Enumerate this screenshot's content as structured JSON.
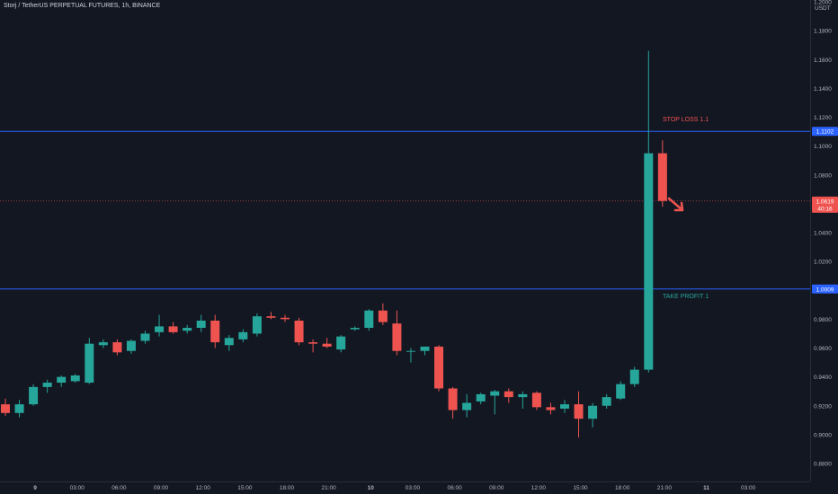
{
  "title": "Storj / TetherUS PERPETUAL FUTURES, 1h, BINANCE",
  "colors": {
    "background": "#131722",
    "up": "#26a69a",
    "down": "#ef5350",
    "hline": "#2962ff",
    "axis_text": "#b2b5be",
    "stop_loss_text": "#ef5350",
    "take_profit_text": "#26a69a",
    "arrow": "#ef5350"
  },
  "chart_data": {
    "type": "candlestick",
    "title": "Storj / TetherUS PERPETUAL FUTURES, 1h, BINANCE",
    "y_axis_label": "USDT",
    "ylim": [
      0.868,
      1.2
    ],
    "y_ticks": [
      "1.2000",
      "1.1800",
      "1.1600",
      "1.1400",
      "1.1200",
      "1.1000",
      "1.0800",
      "1.0600",
      "1.0400",
      "1.0200",
      "0.9800",
      "0.9600",
      "0.9400",
      "0.9200",
      "0.9000",
      "0.8800"
    ],
    "x_ticks": [
      {
        "label": "9",
        "bold": true,
        "i": 2
      },
      {
        "label": "03:00",
        "i": 5
      },
      {
        "label": "06:00",
        "i": 8
      },
      {
        "label": "09:00",
        "i": 11
      },
      {
        "label": "12:00",
        "i": 14
      },
      {
        "label": "15:00",
        "i": 17
      },
      {
        "label": "18:00",
        "i": 20
      },
      {
        "label": "21:00",
        "i": 23
      },
      {
        "label": "10",
        "bold": true,
        "i": 26
      },
      {
        "label": "03:00",
        "i": 29
      },
      {
        "label": "06:00",
        "i": 32
      },
      {
        "label": "09:00",
        "i": 35
      },
      {
        "label": "12:00",
        "i": 38
      },
      {
        "label": "15:00",
        "i": 41
      },
      {
        "label": "18:00",
        "i": 44
      },
      {
        "label": "21:00",
        "i": 47
      },
      {
        "label": "11",
        "bold": true,
        "i": 50
      },
      {
        "label": "03:00",
        "i": 53
      }
    ],
    "candles": [
      {
        "o": 0.921,
        "h": 0.925,
        "l": 0.913,
        "c": 0.915
      },
      {
        "o": 0.915,
        "h": 0.924,
        "l": 0.912,
        "c": 0.921
      },
      {
        "o": 0.921,
        "h": 0.935,
        "l": 0.92,
        "c": 0.933
      },
      {
        "o": 0.933,
        "h": 0.938,
        "l": 0.929,
        "c": 0.936
      },
      {
        "o": 0.936,
        "h": 0.941,
        "l": 0.933,
        "c": 0.94
      },
      {
        "o": 0.937,
        "h": 0.942,
        "l": 0.936,
        "c": 0.941
      },
      {
        "o": 0.936,
        "h": 0.967,
        "l": 0.935,
        "c": 0.963
      },
      {
        "o": 0.962,
        "h": 0.966,
        "l": 0.96,
        "c": 0.964
      },
      {
        "o": 0.964,
        "h": 0.966,
        "l": 0.955,
        "c": 0.957
      },
      {
        "o": 0.958,
        "h": 0.966,
        "l": 0.956,
        "c": 0.965
      },
      {
        "o": 0.965,
        "h": 0.972,
        "l": 0.963,
        "c": 0.97
      },
      {
        "o": 0.971,
        "h": 0.983,
        "l": 0.968,
        "c": 0.975
      },
      {
        "o": 0.975,
        "h": 0.978,
        "l": 0.97,
        "c": 0.971
      },
      {
        "o": 0.972,
        "h": 0.976,
        "l": 0.97,
        "c": 0.974
      },
      {
        "o": 0.974,
        "h": 0.983,
        "l": 0.971,
        "c": 0.979
      },
      {
        "o": 0.979,
        "h": 0.983,
        "l": 0.96,
        "c": 0.964
      },
      {
        "o": 0.962,
        "h": 0.969,
        "l": 0.958,
        "c": 0.967
      },
      {
        "o": 0.966,
        "h": 0.973,
        "l": 0.964,
        "c": 0.971
      },
      {
        "o": 0.97,
        "h": 0.984,
        "l": 0.968,
        "c": 0.982
      },
      {
        "o": 0.982,
        "h": 0.985,
        "l": 0.98,
        "c": 0.981
      },
      {
        "o": 0.981,
        "h": 0.983,
        "l": 0.978,
        "c": 0.98
      },
      {
        "o": 0.979,
        "h": 0.981,
        "l": 0.962,
        "c": 0.964
      },
      {
        "o": 0.964,
        "h": 0.966,
        "l": 0.957,
        "c": 0.963
      },
      {
        "o": 0.963,
        "h": 0.967,
        "l": 0.96,
        "c": 0.961
      },
      {
        "o": 0.959,
        "h": 0.969,
        "l": 0.957,
        "c": 0.968
      },
      {
        "o": 0.973,
        "h": 0.975,
        "l": 0.972,
        "c": 0.974
      },
      {
        "o": 0.974,
        "h": 0.987,
        "l": 0.972,
        "c": 0.986
      },
      {
        "o": 0.986,
        "h": 0.991,
        "l": 0.976,
        "c": 0.978
      },
      {
        "o": 0.977,
        "h": 0.986,
        "l": 0.955,
        "c": 0.958
      },
      {
        "o": 0.958,
        "h": 0.96,
        "l": 0.95,
        "c": 0.958
      },
      {
        "o": 0.958,
        "h": 0.961,
        "l": 0.955,
        "c": 0.961
      },
      {
        "o": 0.961,
        "h": 0.962,
        "l": 0.93,
        "c": 0.932
      },
      {
        "o": 0.932,
        "h": 0.933,
        "l": 0.911,
        "c": 0.917
      },
      {
        "o": 0.917,
        "h": 0.928,
        "l": 0.912,
        "c": 0.922
      },
      {
        "o": 0.923,
        "h": 0.929,
        "l": 0.921,
        "c": 0.928
      },
      {
        "o": 0.927,
        "h": 0.931,
        "l": 0.914,
        "c": 0.93
      },
      {
        "o": 0.93,
        "h": 0.932,
        "l": 0.922,
        "c": 0.926
      },
      {
        "o": 0.926,
        "h": 0.93,
        "l": 0.918,
        "c": 0.928
      },
      {
        "o": 0.929,
        "h": 0.93,
        "l": 0.917,
        "c": 0.919
      },
      {
        "o": 0.919,
        "h": 0.922,
        "l": 0.914,
        "c": 0.917
      },
      {
        "o": 0.918,
        "h": 0.924,
        "l": 0.915,
        "c": 0.921
      },
      {
        "o": 0.921,
        "h": 0.93,
        "l": 0.898,
        "c": 0.911
      },
      {
        "o": 0.911,
        "h": 0.922,
        "l": 0.905,
        "c": 0.92
      },
      {
        "o": 0.92,
        "h": 0.928,
        "l": 0.918,
        "c": 0.926
      },
      {
        "o": 0.925,
        "h": 0.937,
        "l": 0.924,
        "c": 0.935
      },
      {
        "o": 0.935,
        "h": 0.947,
        "l": 0.933,
        "c": 0.945
      },
      {
        "o": 0.945,
        "h": 1.166,
        "l": 0.943,
        "c": 1.095
      },
      {
        "o": 1.095,
        "h": 1.104,
        "l": 1.058,
        "c": 1.062
      }
    ],
    "horizontal_lines": [
      {
        "value": 1.1102,
        "label": "1.1102",
        "annotation": "STOP LOSS 1.1"
      },
      {
        "value": 1.0009,
        "label": "1.0009",
        "annotation": "TAKE PROFIT 1"
      }
    ],
    "current_price": {
      "value": 1.0619,
      "label": "1.0619",
      "countdown": "40:16"
    }
  }
}
